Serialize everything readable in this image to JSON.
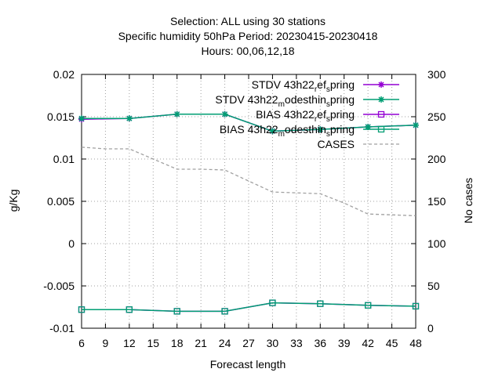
{
  "title_lines": [
    "Selection: ALL using    30 stations",
    "Specific humidity 50hPa   Period: 20230415-20230418",
    "Hours:  00,06,12,18"
  ],
  "chart_data": {
    "type": "line",
    "xlabel": "Forecast length",
    "ylabel": "g/Kg",
    "y2label": "No cases",
    "x": [
      6,
      12,
      18,
      24,
      30,
      36,
      42,
      48
    ],
    "xticks": [
      6,
      9,
      12,
      15,
      18,
      21,
      24,
      27,
      30,
      33,
      36,
      39,
      42,
      45,
      48
    ],
    "xlim": [
      6,
      48
    ],
    "ylim": [
      -0.01,
      0.02
    ],
    "yticks": [
      "0.02",
      "0.015",
      "0.01",
      "0.005",
      "0",
      "-0.005",
      "-0.01"
    ],
    "y2lim": [
      0,
      300
    ],
    "y2ticks": [
      "300",
      "250",
      "200",
      "150",
      "100",
      "50",
      "0"
    ],
    "grid": true,
    "legend_position": "top-right",
    "series": [
      {
        "name": "STDV 43h22_ref_spring",
        "legend_parts": [
          "STDV 43h22",
          "r",
          "ef",
          "s",
          "pring"
        ],
        "axis": "y",
        "color": "#9400d3",
        "marker": "star",
        "dashed": false,
        "values": [
          0.0147,
          0.0148,
          0.0153,
          0.0153,
          0.0133,
          0.0135,
          0.0138,
          0.014
        ]
      },
      {
        "name": "STDV 43h22_modesthin_spring",
        "legend_parts": [
          "STDV 43h22",
          "m",
          "odesthin",
          "s",
          "pring"
        ],
        "axis": "y",
        "color": "#009e73",
        "marker": "star",
        "dashed": false,
        "values": [
          0.0148,
          0.0148,
          0.0153,
          0.0153,
          0.0133,
          0.0135,
          0.0138,
          0.014
        ]
      },
      {
        "name": "BIAS 43h22_ref_spring",
        "legend_parts": [
          "BIAS 43h22",
          "r",
          "ef",
          "s",
          "pring"
        ],
        "axis": "y",
        "color": "#9400d3",
        "marker": "square",
        "dashed": false,
        "values": [
          -0.0078,
          -0.0078,
          -0.008,
          -0.008,
          -0.007,
          -0.0071,
          -0.0073,
          -0.0074
        ]
      },
      {
        "name": "BIAS 43h22_modesthin_spring",
        "legend_parts": [
          "BIAS 43h22",
          "m",
          "odesthin",
          "s",
          "pring"
        ],
        "axis": "y",
        "color": "#009e73",
        "marker": "square",
        "dashed": false,
        "values": [
          -0.0078,
          -0.0078,
          -0.008,
          -0.008,
          -0.007,
          -0.0071,
          -0.0073,
          -0.0074
        ]
      },
      {
        "name": "CASES",
        "legend_parts": [
          "CASES"
        ],
        "axis": "y2",
        "color": "#a0a0a0",
        "marker": "none",
        "dashed": true,
        "x": [
          6,
          9,
          12,
          15,
          18,
          21,
          24,
          27,
          30,
          33,
          36,
          39,
          42,
          45,
          48
        ],
        "values": [
          214,
          212,
          212,
          200,
          188,
          188,
          187,
          174,
          161,
          160,
          159,
          148,
          135,
          134,
          133
        ]
      }
    ]
  }
}
